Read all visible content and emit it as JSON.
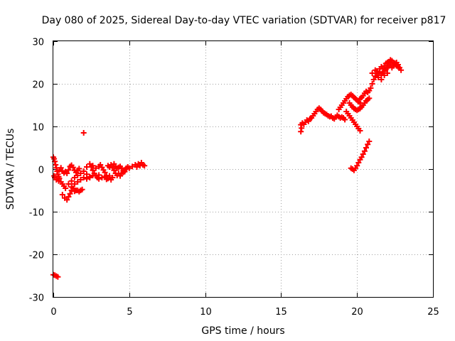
{
  "chart_data": {
    "type": "scatter",
    "title": "Day 080 of 2025, Sidereal Day-to-day VTEC variation (SDTVAR) for receiver p817",
    "xlabel": "GPS time / hours",
    "ylabel": "SDTVAR / TECUs",
    "xlim": [
      0,
      25
    ],
    "ylim": [
      -30,
      30
    ],
    "xticks": [
      0,
      5,
      10,
      15,
      20,
      25
    ],
    "yticks": [
      -30,
      -20,
      -10,
      0,
      10,
      20,
      30
    ],
    "grid": true,
    "marker": "plus",
    "series_color": "#ff0000",
    "series": [
      {
        "points": [
          [
            0.0,
            2.8
          ],
          [
            0.05,
            2.4
          ],
          [
            0.1,
            1.8
          ],
          [
            0.15,
            1.0
          ],
          [
            0.2,
            0.3
          ],
          [
            0.25,
            -0.5
          ],
          [
            0.3,
            -1.2
          ],
          [
            0.35,
            -1.8
          ],
          [
            0.4,
            -2.2
          ],
          [
            0.05,
            -1.6
          ],
          [
            0.1,
            -2.0
          ],
          [
            0.2,
            -2.5
          ],
          [
            0.35,
            -2.8
          ],
          [
            0.5,
            -3.0
          ],
          [
            0.6,
            -3.5
          ],
          [
            0.7,
            -4.0
          ],
          [
            0.8,
            -4.5
          ],
          [
            0.6,
            -6.0
          ],
          [
            0.75,
            -6.8
          ],
          [
            0.9,
            -7.2
          ],
          [
            1.0,
            -6.5
          ],
          [
            1.1,
            -5.8
          ],
          [
            1.2,
            -5.0
          ],
          [
            1.3,
            -4.5
          ],
          [
            1.4,
            -5.2
          ],
          [
            1.5,
            -5.0
          ],
          [
            1.6,
            -5.0
          ],
          [
            1.7,
            -5.3
          ],
          [
            1.8,
            -5.0
          ],
          [
            1.9,
            -4.8
          ],
          [
            0.4,
            -0.2
          ],
          [
            0.5,
            0.3
          ],
          [
            0.6,
            -0.5
          ],
          [
            0.7,
            -0.9
          ],
          [
            0.8,
            -0.6
          ],
          [
            0.9,
            -1.0
          ],
          [
            1.0,
            -3.5
          ],
          [
            1.2,
            -2.8
          ],
          [
            1.4,
            -2.0
          ],
          [
            1.6,
            -1.5
          ],
          [
            1.8,
            -1.0
          ],
          [
            2.0,
            -0.5
          ],
          [
            2.2,
            -1.2
          ],
          [
            2.4,
            -1.8
          ],
          [
            1.0,
            -0.2
          ],
          [
            1.1,
            0.6
          ],
          [
            1.2,
            0.9
          ],
          [
            1.3,
            0.4
          ],
          [
            1.4,
            -0.3
          ],
          [
            1.5,
            -0.8
          ],
          [
            1.6,
            -0.3
          ],
          [
            1.7,
            0.1
          ],
          [
            1.2,
            -4.2
          ],
          [
            1.4,
            -3.5
          ],
          [
            1.6,
            -3.0
          ],
          [
            1.8,
            -2.5
          ],
          [
            2.0,
            -2.0
          ],
          [
            2.2,
            -2.3
          ],
          [
            2.4,
            -2.0
          ],
          [
            2.6,
            -1.5
          ],
          [
            2.2,
            0.5
          ],
          [
            2.4,
            1.2
          ],
          [
            2.5,
            0.5
          ],
          [
            2.6,
            -0.3
          ],
          [
            2.7,
            -1.0
          ],
          [
            2.8,
            -1.6
          ],
          [
            2.9,
            -2.0
          ],
          [
            3.0,
            -1.4
          ],
          [
            2.6,
            0.8
          ],
          [
            2.8,
            0.2
          ],
          [
            3.0,
            0.6
          ],
          [
            3.1,
            1.0
          ],
          [
            3.2,
            0.4
          ],
          [
            3.3,
            -0.2
          ],
          [
            3.4,
            -0.8
          ],
          [
            3.5,
            -1.5
          ],
          [
            3.0,
            -2.3
          ],
          [
            3.2,
            -2.0
          ],
          [
            3.4,
            -1.8
          ],
          [
            3.5,
            -2.4
          ],
          [
            3.6,
            -2.2
          ],
          [
            3.7,
            -1.6
          ],
          [
            3.8,
            -2.5
          ],
          [
            3.9,
            -2.0
          ],
          [
            3.6,
            0.8
          ],
          [
            3.7,
            0.5
          ],
          [
            3.8,
            1.0
          ],
          [
            3.9,
            0.3
          ],
          [
            4.0,
            -0.3
          ],
          [
            4.1,
            -1.0
          ],
          [
            4.2,
            -1.5
          ],
          [
            4.3,
            -1.0
          ],
          [
            4.0,
            1.2
          ],
          [
            4.1,
            0.6
          ],
          [
            4.2,
            0.2
          ],
          [
            4.3,
            0.4
          ],
          [
            4.4,
            0.6
          ],
          [
            4.5,
            0.2
          ],
          [
            4.6,
            -0.4
          ],
          [
            4.7,
            -0.6
          ],
          [
            4.4,
            -1.6
          ],
          [
            4.5,
            -1.0
          ],
          [
            4.6,
            -0.8
          ],
          [
            4.7,
            -0.2
          ],
          [
            4.8,
            0.2
          ],
          [
            4.9,
            0.5
          ],
          [
            5.0,
            0.2
          ],
          [
            5.2,
            0.6
          ],
          [
            5.4,
            1.0
          ],
          [
            5.5,
            0.5
          ],
          [
            5.6,
            1.2
          ],
          [
            5.7,
            0.8
          ],
          [
            5.8,
            1.5
          ],
          [
            5.9,
            1.0
          ],
          [
            6.0,
            0.8
          ],
          [
            2.0,
            8.5
          ],
          [
            0.0,
            -24.8
          ],
          [
            0.1,
            -24.9
          ],
          [
            0.2,
            -25.1
          ],
          [
            0.3,
            -25.3
          ],
          [
            16.3,
            8.8
          ],
          [
            16.35,
            9.6
          ],
          [
            16.3,
            10.4
          ],
          [
            16.4,
            10.8
          ],
          [
            16.5,
            10.5
          ],
          [
            16.6,
            11.0
          ],
          [
            16.7,
            11.5
          ],
          [
            16.8,
            11.2
          ],
          [
            16.9,
            11.8
          ],
          [
            17.0,
            12.0
          ],
          [
            17.1,
            12.5
          ],
          [
            17.2,
            13.0
          ],
          [
            17.3,
            13.5
          ],
          [
            17.4,
            14.0
          ],
          [
            17.5,
            14.3
          ],
          [
            17.6,
            14.0
          ],
          [
            17.7,
            13.6
          ],
          [
            17.8,
            13.2
          ],
          [
            17.9,
            13.0
          ],
          [
            18.0,
            12.8
          ],
          [
            18.1,
            12.5
          ],
          [
            18.2,
            12.3
          ],
          [
            18.3,
            12.4
          ],
          [
            18.4,
            12.0
          ],
          [
            18.5,
            11.8
          ],
          [
            18.6,
            12.2
          ],
          [
            18.7,
            12.6
          ],
          [
            18.8,
            12.3
          ],
          [
            18.9,
            12.0
          ],
          [
            19.0,
            12.2
          ],
          [
            19.1,
            12.0
          ],
          [
            19.2,
            11.6
          ],
          [
            18.8,
            14.0
          ],
          [
            18.9,
            14.5
          ],
          [
            19.0,
            15.0
          ],
          [
            19.1,
            15.5
          ],
          [
            19.2,
            16.0
          ],
          [
            19.3,
            16.5
          ],
          [
            19.4,
            17.0
          ],
          [
            19.5,
            17.3
          ],
          [
            19.6,
            17.5
          ],
          [
            19.7,
            17.2
          ],
          [
            19.8,
            16.8
          ],
          [
            19.9,
            16.5
          ],
          [
            20.0,
            16.2
          ],
          [
            20.1,
            15.8
          ],
          [
            20.2,
            15.5
          ],
          [
            19.3,
            13.5
          ],
          [
            19.4,
            13.0
          ],
          [
            19.5,
            12.5
          ],
          [
            19.6,
            12.0
          ],
          [
            19.7,
            11.5
          ],
          [
            19.8,
            11.0
          ],
          [
            19.9,
            10.5
          ],
          [
            20.0,
            10.0
          ],
          [
            20.1,
            9.5
          ],
          [
            20.2,
            9.0
          ],
          [
            19.5,
            15.5
          ],
          [
            19.6,
            15.0
          ],
          [
            19.7,
            14.6
          ],
          [
            19.8,
            14.2
          ],
          [
            19.9,
            14.0
          ],
          [
            20.0,
            13.8
          ],
          [
            20.1,
            14.0
          ],
          [
            20.2,
            14.2
          ],
          [
            20.3,
            14.6
          ],
          [
            20.4,
            15.0
          ],
          [
            20.5,
            15.5
          ],
          [
            20.6,
            16.0
          ],
          [
            20.7,
            16.3
          ],
          [
            20.8,
            16.6
          ],
          [
            20.2,
            16.5
          ],
          [
            20.3,
            16.8
          ],
          [
            20.4,
            17.2
          ],
          [
            20.5,
            17.8
          ],
          [
            20.6,
            18.2
          ],
          [
            20.7,
            18.0
          ],
          [
            20.8,
            18.4
          ],
          [
            19.6,
            0.2
          ],
          [
            19.7,
            0.0
          ],
          [
            19.8,
            -0.3
          ],
          [
            19.9,
            0.2
          ],
          [
            20.0,
            0.8
          ],
          [
            20.1,
            1.5
          ],
          [
            20.2,
            2.2
          ],
          [
            20.3,
            2.8
          ],
          [
            20.4,
            3.5
          ],
          [
            20.5,
            4.2
          ],
          [
            20.6,
            5.0
          ],
          [
            20.7,
            5.8
          ],
          [
            20.8,
            6.5
          ],
          [
            20.9,
            19.0
          ],
          [
            21.0,
            20.0
          ],
          [
            21.1,
            21.0
          ],
          [
            21.2,
            21.8
          ],
          [
            21.3,
            22.5
          ],
          [
            21.4,
            22.0
          ],
          [
            21.5,
            22.8
          ],
          [
            21.3,
            23.0
          ],
          [
            21.5,
            23.5
          ],
          [
            21.6,
            24.0
          ],
          [
            21.7,
            23.5
          ],
          [
            21.8,
            24.2
          ],
          [
            21.9,
            24.8
          ],
          [
            22.0,
            25.0
          ],
          [
            21.6,
            22.0
          ],
          [
            21.7,
            22.5
          ],
          [
            21.8,
            23.0
          ],
          [
            21.9,
            23.4
          ],
          [
            22.0,
            23.8
          ],
          [
            22.1,
            24.2
          ],
          [
            22.2,
            24.6
          ],
          [
            22.1,
            25.2
          ],
          [
            22.2,
            25.6
          ],
          [
            22.3,
            25.4
          ],
          [
            22.4,
            25.0
          ],
          [
            22.5,
            24.6
          ],
          [
            22.6,
            24.2
          ],
          [
            22.7,
            24.0
          ],
          [
            22.3,
            23.8
          ],
          [
            22.4,
            24.2
          ],
          [
            22.5,
            24.8
          ],
          [
            22.6,
            25.0
          ],
          [
            22.7,
            24.5
          ],
          [
            22.8,
            23.8
          ],
          [
            22.9,
            23.2
          ],
          [
            21.0,
            22.5
          ],
          [
            21.2,
            23.2
          ],
          [
            21.4,
            21.5
          ],
          [
            21.6,
            21.0
          ],
          [
            21.8,
            22.0
          ],
          [
            22.0,
            22.5
          ]
        ]
      }
    ]
  }
}
